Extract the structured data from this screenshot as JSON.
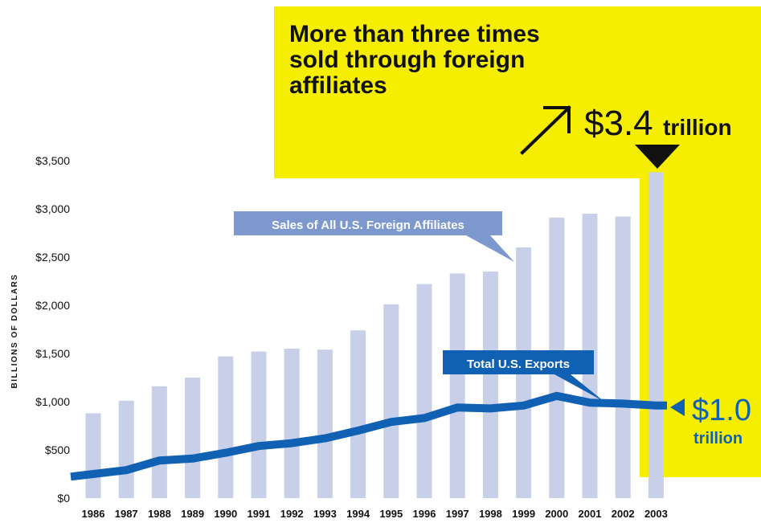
{
  "colors": {
    "highlight": "#f5ee00",
    "bar": "#c7cfe9",
    "line": "#1060b4",
    "callout_bar": "#7d97cf",
    "callout_line": "#1060b4",
    "text": "#111111"
  },
  "headline": {
    "lines": [
      "More than three times",
      "sold through foreign",
      "affiliates"
    ]
  },
  "annotations": {
    "top_value": "$3.4",
    "top_unit": "trillion",
    "end_value": "$1.0",
    "end_unit": "trillion",
    "arrow_icon": "arrow-up-right-icon",
    "down_marker_icon": "triangle-down-icon",
    "left_marker_icon": "triangle-left-icon"
  },
  "chart_data": {
    "type": "bar",
    "ylabel": "BILLIONS OF DOLLARS",
    "xlabel": "",
    "ylim": [
      0,
      3500
    ],
    "yticks": [
      0,
      500,
      1000,
      1500,
      2000,
      2500,
      3000,
      3500
    ],
    "ytick_labels": [
      "$0",
      "$500",
      "$1,000",
      "$1,500",
      "$2,000",
      "$2,500",
      "$3,000",
      "$3,500"
    ],
    "categories": [
      "1986",
      "1987",
      "1988",
      "1989",
      "1990",
      "1991",
      "1992",
      "1993",
      "1994",
      "1995",
      "1996",
      "1997",
      "1998",
      "1999",
      "2000",
      "2001",
      "2002",
      "2003"
    ],
    "series": [
      {
        "name": "Sales of All U.S. Foreign Affiliates",
        "type": "bar",
        "values": [
          880,
          1010,
          1160,
          1250,
          1470,
          1520,
          1550,
          1540,
          1740,
          2010,
          2220,
          2330,
          2350,
          2600,
          2910,
          2950,
          2920,
          3380
        ]
      },
      {
        "name": "Total U.S. Exports",
        "type": "line",
        "values": [
          250,
          290,
          390,
          410,
          470,
          540,
          570,
          620,
          700,
          790,
          830,
          940,
          930,
          960,
          1060,
          990,
          980,
          960
        ]
      }
    ],
    "grid": false,
    "legend": "none"
  }
}
